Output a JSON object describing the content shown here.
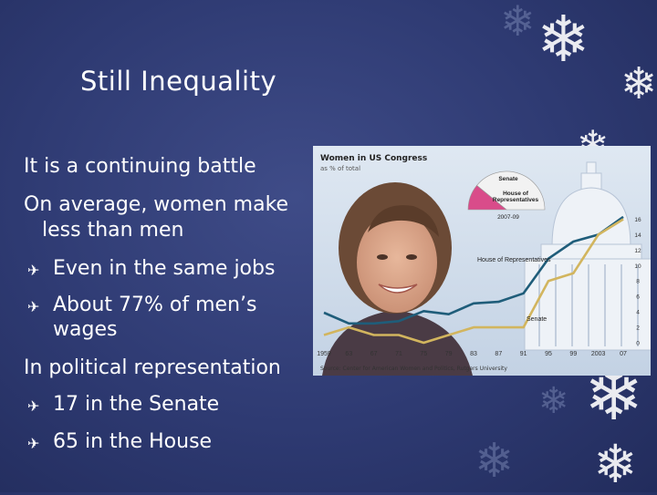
{
  "slide": {
    "title": "Still Inequality",
    "lines": [
      {
        "text": "It is a continuing battle"
      },
      {
        "text": "On average, women make"
      },
      {
        "text": "less than men"
      },
      {
        "text": "Even in the same jobs"
      },
      {
        "text": "About 77% of men’s"
      },
      {
        "text": "wages"
      },
      {
        "text": "In political representation"
      },
      {
        "text": "17 in the Senate"
      },
      {
        "text": "65 in the House"
      }
    ]
  },
  "chart_data": {
    "type": "line",
    "title": "Women in US Congress",
    "subtitle": "as % of total",
    "source": "Source: Center for American Women and Politics, Rutgers University",
    "x": [
      1959,
      1963,
      1967,
      1971,
      1975,
      1979,
      1983,
      1987,
      1991,
      1995,
      1999,
      2003,
      2007
    ],
    "x_tick_labels": [
      "1959",
      "63",
      "67",
      "71",
      "75",
      "79",
      "83",
      "87",
      "91",
      "95",
      "99",
      "2003",
      "07"
    ],
    "y_ticks": [
      0,
      2,
      4,
      6,
      8,
      10,
      12,
      14,
      16
    ],
    "ylim": [
      0,
      17
    ],
    "grid": false,
    "series": [
      {
        "name": "House of Representatives",
        "color": "#1f5d7a",
        "values": [
          3.9,
          2.5,
          2.5,
          2.8,
          4.1,
          3.7,
          5.1,
          5.3,
          6.4,
          10.9,
          13.1,
          14.0,
          16.3
        ]
      },
      {
        "name": "Senate",
        "color": "#d2b55e",
        "values": [
          1.0,
          2.0,
          1.0,
          1.0,
          0,
          1.0,
          2.0,
          2.0,
          2.0,
          8.0,
          9.0,
          14.0,
          16.0
        ]
      }
    ],
    "inset": {
      "type": "pie",
      "label": "2007-09",
      "slices": [
        {
          "name": "Senate",
          "value": 16,
          "color": "#f2f2f2"
        },
        {
          "name": "House of Representatives",
          "value": 16.3,
          "color": "#d94c8a"
        }
      ]
    }
  }
}
